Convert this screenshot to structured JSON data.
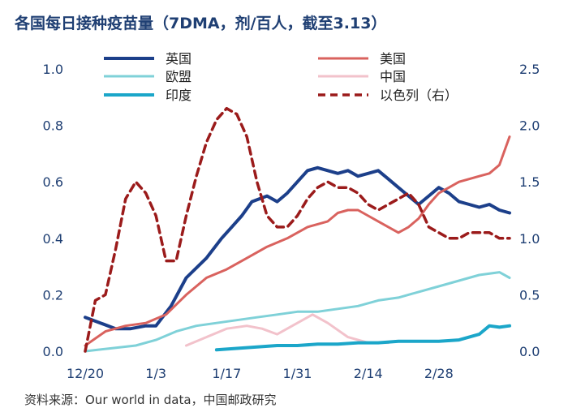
{
  "chart_data": {
    "type": "line",
    "title": "各国每日接种疫苗量（7DMA，剂/百人，截至3.13）",
    "source": "资料来源：Our world in data，中国邮政研究",
    "x_ticks": [
      "12/20",
      "1/3",
      "1/17",
      "1/31",
      "2/14",
      "2/28"
    ],
    "y_left": {
      "lim": [
        0,
        1.0
      ],
      "ticks": [
        "0.0",
        "0.2",
        "0.4",
        "0.6",
        "0.8",
        "1.0"
      ]
    },
    "y_right": {
      "lim": [
        0,
        2.5
      ],
      "ticks": [
        "0.0",
        "0.5",
        "1.0",
        "1.5",
        "2.0",
        "2.5"
      ]
    },
    "x_range": [
      0,
      84
    ],
    "series": [
      {
        "name": "英国",
        "axis": "left",
        "color": "#1c3f8a",
        "dash": "",
        "width": 4,
        "x": [
          0,
          3,
          6,
          9,
          12,
          14,
          17,
          20,
          24,
          27,
          29,
          31,
          33,
          36,
          38,
          40,
          42,
          44,
          46,
          48,
          50,
          52,
          54,
          56,
          58,
          60,
          62,
          64,
          66,
          68,
          70,
          72,
          74,
          76,
          78,
          80,
          82,
          84
        ],
        "y": [
          0.12,
          0.1,
          0.08,
          0.08,
          0.09,
          0.09,
          0.16,
          0.26,
          0.33,
          0.4,
          0.44,
          0.48,
          0.53,
          0.55,
          0.53,
          0.56,
          0.6,
          0.64,
          0.65,
          0.64,
          0.63,
          0.64,
          0.62,
          0.63,
          0.64,
          0.61,
          0.58,
          0.55,
          0.52,
          0.55,
          0.58,
          0.56,
          0.53,
          0.52,
          0.51,
          0.52,
          0.5,
          0.49
        ]
      },
      {
        "name": "美国",
        "axis": "left",
        "color": "#d9625e",
        "dash": "",
        "width": 3,
        "x": [
          0,
          4,
          8,
          12,
          16,
          20,
          24,
          28,
          32,
          36,
          40,
          44,
          46,
          48,
          50,
          52,
          54,
          56,
          58,
          60,
          62,
          64,
          66,
          68,
          70,
          72,
          74,
          76,
          78,
          80,
          82,
          84
        ],
        "y": [
          0.02,
          0.07,
          0.09,
          0.1,
          0.13,
          0.2,
          0.26,
          0.29,
          0.33,
          0.37,
          0.4,
          0.44,
          0.45,
          0.46,
          0.49,
          0.5,
          0.5,
          0.48,
          0.46,
          0.44,
          0.42,
          0.44,
          0.47,
          0.52,
          0.56,
          0.58,
          0.6,
          0.61,
          0.62,
          0.63,
          0.66,
          0.76
        ]
      },
      {
        "name": "欧盟",
        "axis": "left",
        "color": "#7fd1d8",
        "dash": "",
        "width": 3,
        "x": [
          0,
          5,
          10,
          14,
          18,
          22,
          26,
          30,
          34,
          38,
          42,
          46,
          50,
          54,
          58,
          62,
          66,
          70,
          74,
          78,
          82,
          84
        ],
        "y": [
          0.0,
          0.01,
          0.02,
          0.04,
          0.07,
          0.09,
          0.1,
          0.11,
          0.12,
          0.13,
          0.14,
          0.14,
          0.15,
          0.16,
          0.18,
          0.19,
          0.21,
          0.23,
          0.25,
          0.27,
          0.28,
          0.26
        ]
      },
      {
        "name": "中国",
        "axis": "left",
        "color": "#f2c2cb",
        "dash": "",
        "width": 3,
        "x": [
          20,
          24,
          28,
          32,
          35,
          38,
          42,
          45,
          48,
          52,
          56,
          60
        ],
        "y": [
          0.02,
          0.05,
          0.08,
          0.09,
          0.08,
          0.06,
          0.1,
          0.13,
          0.1,
          0.05,
          0.03,
          0.03
        ]
      },
      {
        "name": "印度",
        "axis": "left",
        "color": "#1ba6c9",
        "dash": "",
        "width": 4,
        "x": [
          26,
          30,
          34,
          38,
          42,
          46,
          50,
          54,
          58,
          62,
          66,
          70,
          74,
          78,
          80,
          82,
          84
        ],
        "y": [
          0.005,
          0.01,
          0.015,
          0.02,
          0.02,
          0.025,
          0.025,
          0.03,
          0.03,
          0.035,
          0.035,
          0.035,
          0.04,
          0.06,
          0.09,
          0.085,
          0.09
        ]
      },
      {
        "name": "以色列（右）",
        "axis": "right",
        "color": "#9b1b1b",
        "dash": "9,6",
        "width": 3.5,
        "x": [
          0,
          2,
          4,
          6,
          8,
          10,
          12,
          14,
          16,
          18,
          20,
          22,
          24,
          26,
          28,
          30,
          32,
          34,
          36,
          38,
          40,
          42,
          44,
          46,
          48,
          50,
          52,
          54,
          56,
          58,
          60,
          62,
          64,
          66,
          68,
          70,
          72,
          74,
          76,
          78,
          80,
          82,
          84
        ],
        "y": [
          0.0,
          0.45,
          0.5,
          0.9,
          1.35,
          1.5,
          1.4,
          1.2,
          0.8,
          0.8,
          1.2,
          1.55,
          1.85,
          2.05,
          2.15,
          2.1,
          1.9,
          1.5,
          1.2,
          1.1,
          1.1,
          1.2,
          1.35,
          1.45,
          1.5,
          1.45,
          1.45,
          1.4,
          1.3,
          1.25,
          1.3,
          1.35,
          1.4,
          1.3,
          1.1,
          1.05,
          1.0,
          1.0,
          1.05,
          1.05,
          1.05,
          1.0,
          1.0
        ]
      }
    ]
  }
}
